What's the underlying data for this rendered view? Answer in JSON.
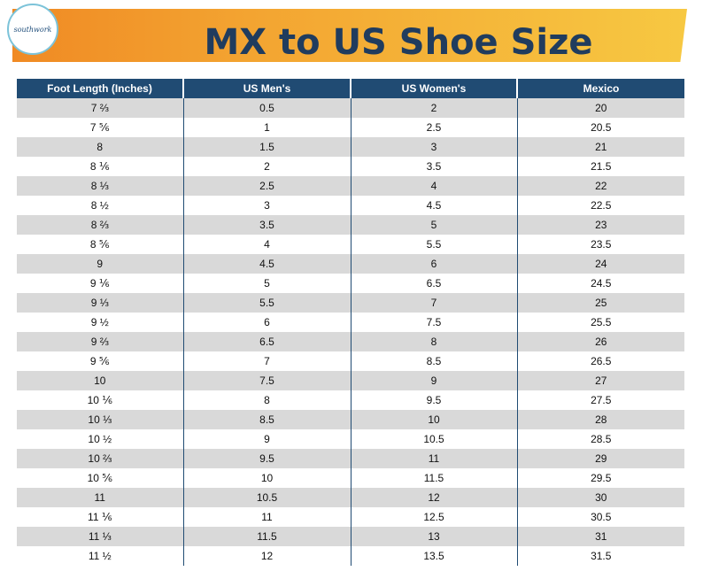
{
  "header": {
    "logo_text": "southwork",
    "title": "MX to US Shoe Size"
  },
  "table": {
    "columns": [
      "Foot Length (Inches)",
      "US Men's",
      "US Women's",
      "Mexico"
    ],
    "rows": [
      [
        "7 ⅔",
        "0.5",
        "2",
        "20"
      ],
      [
        "7 ⅚",
        "1",
        "2.5",
        "20.5"
      ],
      [
        "8",
        "1.5",
        "3",
        "21"
      ],
      [
        "8 ⅙",
        "2",
        "3.5",
        "21.5"
      ],
      [
        "8 ⅓",
        "2.5",
        "4",
        "22"
      ],
      [
        "8 ½",
        "3",
        "4.5",
        "22.5"
      ],
      [
        "8 ⅔",
        "3.5",
        "5",
        "23"
      ],
      [
        "8 ⅚",
        "4",
        "5.5",
        "23.5"
      ],
      [
        "9",
        "4.5",
        "6",
        "24"
      ],
      [
        "9 ⅙",
        "5",
        "6.5",
        "24.5"
      ],
      [
        "9 ⅓",
        "5.5",
        "7",
        "25"
      ],
      [
        "9 ½",
        "6",
        "7.5",
        "25.5"
      ],
      [
        "9 ⅔",
        "6.5",
        "8",
        "26"
      ],
      [
        "9 ⅚",
        "7",
        "8.5",
        "26.5"
      ],
      [
        "10",
        "7.5",
        "9",
        "27"
      ],
      [
        "10 ⅙",
        "8",
        "9.5",
        "27.5"
      ],
      [
        "10 ⅓",
        "8.5",
        "10",
        "28"
      ],
      [
        "10 ½",
        "9",
        "10.5",
        "28.5"
      ],
      [
        "10 ⅔",
        "9.5",
        "11",
        "29"
      ],
      [
        "10 ⅚",
        "10",
        "11.5",
        "29.5"
      ],
      [
        "11",
        "10.5",
        "12",
        "30"
      ],
      [
        "11 ⅙",
        "11",
        "12.5",
        "30.5"
      ],
      [
        "11 ⅓",
        "11.5",
        "13",
        "31"
      ],
      [
        "11 ½",
        "12",
        "13.5",
        "31.5"
      ]
    ]
  },
  "colors": {
    "header_bg": "#204b73",
    "title_text": "#203c5e",
    "banner_start": "#f08a24",
    "banner_end": "#f7c842",
    "stripe": "#d9d9d9"
  }
}
